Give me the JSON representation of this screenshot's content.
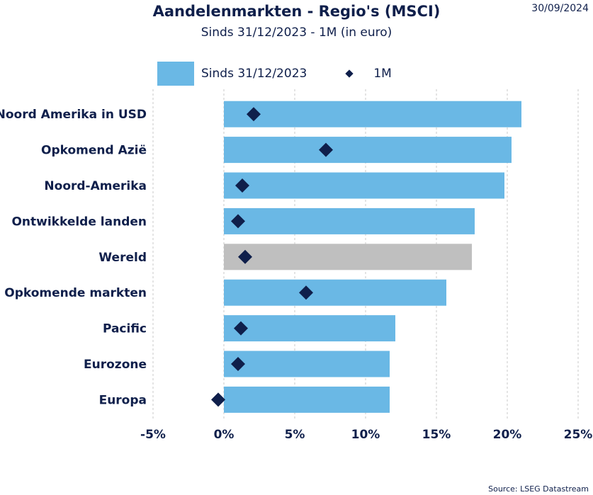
{
  "header": {
    "title": "Aandelenmarkten - Regio's (MSCI)",
    "subtitle": "Sinds 31/12/2023 - 1M (in euro)",
    "date": "30/09/2024"
  },
  "legend": {
    "series_1": "Sinds 31/12/2023",
    "series_2": "1M"
  },
  "footer": {
    "source": "Source: LSEG Datastream"
  },
  "colors": {
    "bar": "#6ab8e5",
    "highlight_bar": "#bfbfbf",
    "marker": "#0f1f4b",
    "text": "#0f1f4b",
    "grid": "#c8c8c8"
  },
  "chart_data": {
    "type": "bar",
    "orientation": "horizontal",
    "title": "Aandelenmarkten - Regio's (MSCI)",
    "subtitle": "Sinds 31/12/2023 - 1M (in euro)",
    "categories": [
      "Noord Amerika in USD",
      "Opkomend Azië",
      "Noord-Amerika",
      "Ontwikkelde landen",
      "Wereld",
      "Opkomende markten",
      "Pacific",
      "Eurozone",
      "Europa"
    ],
    "series": [
      {
        "name": "Sinds 31/12/2023",
        "style": "bar",
        "values": [
          21.0,
          20.3,
          19.8,
          17.7,
          17.5,
          15.7,
          12.1,
          11.7,
          11.7
        ]
      },
      {
        "name": "1M",
        "style": "diamond",
        "values": [
          2.1,
          7.2,
          1.3,
          1.0,
          1.5,
          5.8,
          1.2,
          1.0,
          -0.4
        ]
      }
    ],
    "highlight_category": "Wereld",
    "xlim": [
      -5,
      25
    ],
    "xticks": [
      -5,
      0,
      5,
      10,
      15,
      20,
      25
    ],
    "xtick_labels": [
      "-5%",
      "0%",
      "5%",
      "10%",
      "15%",
      "20%",
      "25%"
    ],
    "grid": "vertical dashed",
    "legend_position": "top"
  }
}
